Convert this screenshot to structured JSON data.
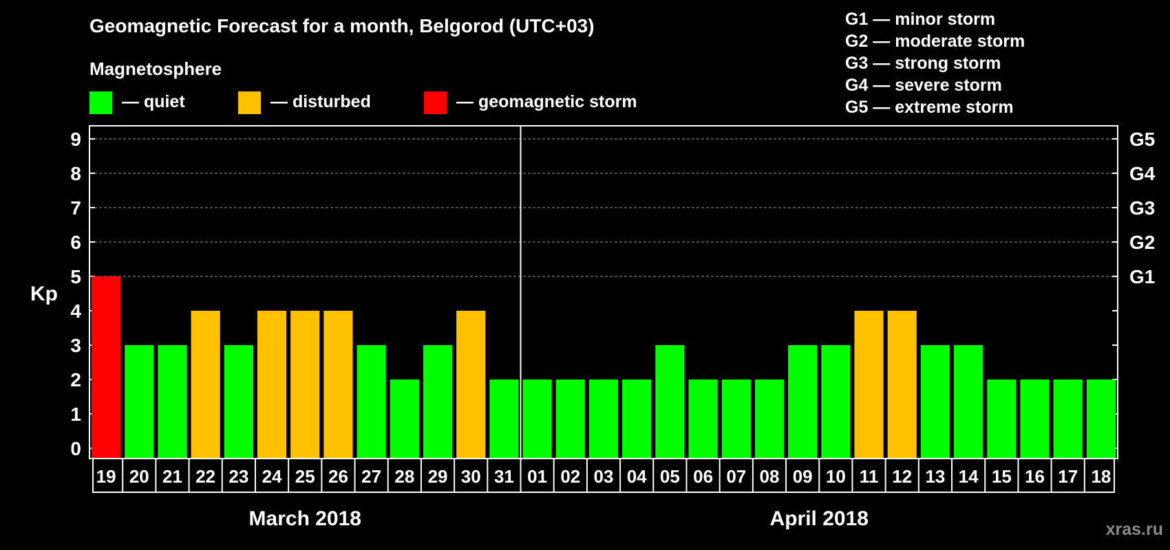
{
  "title": "Geomagnetic Forecast for a month, Belgorod (UTC+03)",
  "legend": {
    "title": "Magnetosphere",
    "items": [
      {
        "label": "— quiet",
        "color": "#00ff00"
      },
      {
        "label": "— disturbed",
        "color": "#ffc000"
      },
      {
        "label": "— geomagnetic storm",
        "color": "#ff0000"
      }
    ]
  },
  "storm_scale": [
    "G1 — minor storm",
    "G2 — moderate storm",
    "G3 — strong storm",
    "G4 — severe storm",
    "G5 — extreme storm"
  ],
  "watermark": "xras.ru",
  "chart_data": {
    "type": "bar",
    "ylabel": "Kp",
    "ylim": [
      0,
      9
    ],
    "yticks": [
      "0",
      "1",
      "2",
      "3",
      "4",
      "5",
      "6",
      "7",
      "8",
      "9"
    ],
    "right_ticks": [
      {
        "kp": 5,
        "label": "G1"
      },
      {
        "kp": 6,
        "label": "G2"
      },
      {
        "kp": 7,
        "label": "G3"
      },
      {
        "kp": 8,
        "label": "G4"
      },
      {
        "kp": 9,
        "label": "G5"
      }
    ],
    "grid": true,
    "categories": [
      "19",
      "20",
      "21",
      "22",
      "23",
      "24",
      "25",
      "26",
      "27",
      "28",
      "29",
      "30",
      "31",
      "01",
      "02",
      "03",
      "04",
      "05",
      "06",
      "07",
      "08",
      "09",
      "10",
      "11",
      "12",
      "13",
      "14",
      "15",
      "16",
      "17",
      "18"
    ],
    "values": [
      5,
      3,
      3,
      4,
      3,
      4,
      4,
      4,
      3,
      2,
      3,
      4,
      2,
      2,
      2,
      2,
      2,
      3,
      2,
      2,
      2,
      3,
      3,
      4,
      4,
      3,
      3,
      2,
      2,
      2,
      2
    ],
    "colors": {
      "quiet": "#00ff00",
      "disturbed": "#ffc000",
      "storm": "#ff0000"
    },
    "months": [
      {
        "label": "March 2018",
        "days": 13
      },
      {
        "label": "April 2018",
        "days": 18
      }
    ]
  }
}
